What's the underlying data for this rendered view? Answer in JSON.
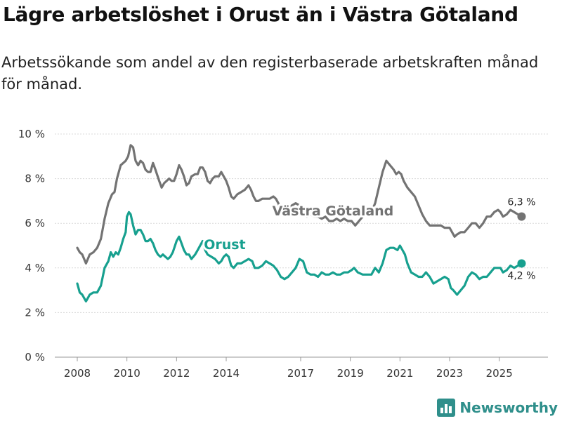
{
  "header": {
    "title": "Lägre arbetslöshet i Orust än i Västra Götaland",
    "subtitle": "Arbetssökande som andel av den registerbaserade arbetskraften månad för månad."
  },
  "brand": {
    "name": "Newsworthy",
    "color": "#2f8f8b"
  },
  "chart_data": {
    "type": "line",
    "title": "Lägre arbetslöshet i Orust än i Västra Götaland",
    "subtitle": "Arbetssökande som andel av den registerbaserade arbetskraften månad för månad.",
    "xlabel": "",
    "ylabel": "",
    "x_range": [
      2008.0,
      2026.0
    ],
    "ylim": [
      0,
      10
    ],
    "y_ticks": [
      0,
      2,
      4,
      6,
      8,
      10
    ],
    "y_tick_labels": [
      "0 %",
      "2 %",
      "4 %",
      "6 %",
      "8 %",
      "10 %"
    ],
    "x_ticks": [
      2008,
      2010,
      2012,
      2014,
      2017,
      2019,
      2021,
      2023,
      2025
    ],
    "x_tick_labels": [
      "2008",
      "2010",
      "2012",
      "2014",
      "2017",
      "2019",
      "2021",
      "2023",
      "2025"
    ],
    "grid": "horizontal",
    "series": [
      {
        "name": "Västra Götaland",
        "color": "#737373",
        "end_label": "6,3 %",
        "x": [
          2008.0,
          2008.1,
          2008.2,
          2008.35,
          2008.5,
          2008.65,
          2008.8,
          2008.95,
          2009.1,
          2009.25,
          2009.4,
          2009.5,
          2009.6,
          2009.75,
          2009.85,
          2009.95,
          2010.05,
          2010.15,
          2010.25,
          2010.35,
          2010.45,
          2010.55,
          2010.65,
          2010.75,
          2010.85,
          2010.95,
          2011.05,
          2011.15,
          2011.3,
          2011.4,
          2011.5,
          2011.6,
          2011.7,
          2011.8,
          2011.9,
          2012.0,
          2012.1,
          2012.2,
          2012.3,
          2012.4,
          2012.5,
          2012.6,
          2012.75,
          2012.85,
          2012.95,
          2013.05,
          2013.15,
          2013.25,
          2013.35,
          2013.45,
          2013.55,
          2013.7,
          2013.8,
          2013.9,
          2014.0,
          2014.1,
          2014.2,
          2014.3,
          2014.45,
          2014.6,
          2014.75,
          2014.9,
          2015.0,
          2015.1,
          2015.2,
          2015.3,
          2015.45,
          2015.6,
          2015.75,
          2015.9,
          2016.0,
          2016.1,
          2016.2,
          2016.35,
          2016.5,
          2016.65,
          2016.8,
          2016.95,
          2017.1,
          2017.25,
          2017.4,
          2017.55,
          2017.7,
          2017.85,
          2018.0,
          2018.15,
          2018.3,
          2018.45,
          2018.6,
          2018.75,
          2018.9,
          2019.05,
          2019.2,
          2019.35,
          2019.5,
          2019.7,
          2019.85,
          2020.0,
          2020.15,
          2020.3,
          2020.45,
          2020.6,
          2020.75,
          2020.85,
          2020.95,
          2021.05,
          2021.15,
          2021.3,
          2021.45,
          2021.6,
          2021.75,
          2021.9,
          2022.05,
          2022.2,
          2022.35,
          2022.5,
          2022.65,
          2022.8,
          2022.9,
          2023.0,
          2023.1,
          2023.2,
          2023.3,
          2023.45,
          2023.6,
          2023.75,
          2023.9,
          2024.05,
          2024.2,
          2024.35,
          2024.5,
          2024.65,
          2024.8,
          2024.95,
          2025.05,
          2025.15,
          2025.3,
          2025.45,
          2025.6,
          2025.75,
          2025.9
        ],
        "values": [
          4.9,
          4.7,
          4.6,
          4.2,
          4.6,
          4.7,
          4.9,
          5.3,
          6.2,
          6.9,
          7.3,
          7.4,
          8.0,
          8.6,
          8.7,
          8.8,
          9.0,
          9.5,
          9.4,
          8.8,
          8.6,
          8.8,
          8.7,
          8.4,
          8.3,
          8.3,
          8.7,
          8.4,
          7.9,
          7.6,
          7.8,
          7.9,
          8.0,
          7.9,
          7.9,
          8.2,
          8.6,
          8.4,
          8.1,
          7.7,
          7.8,
          8.1,
          8.2,
          8.2,
          8.5,
          8.5,
          8.3,
          7.9,
          7.8,
          8.0,
          8.1,
          8.1,
          8.3,
          8.1,
          7.9,
          7.6,
          7.2,
          7.1,
          7.3,
          7.4,
          7.5,
          7.7,
          7.5,
          7.2,
          7.0,
          7.0,
          7.1,
          7.1,
          7.1,
          7.2,
          7.1,
          6.9,
          6.6,
          6.5,
          6.7,
          6.8,
          6.9,
          6.8,
          6.6,
          6.3,
          6.4,
          6.3,
          6.3,
          6.2,
          6.3,
          6.1,
          6.1,
          6.2,
          6.1,
          6.2,
          6.1,
          6.1,
          5.9,
          6.1,
          6.3,
          6.4,
          6.5,
          6.9,
          7.6,
          8.3,
          8.8,
          8.6,
          8.4,
          8.2,
          8.3,
          8.2,
          7.9,
          7.6,
          7.4,
          7.2,
          6.8,
          6.4,
          6.1,
          5.9,
          5.9,
          5.9,
          5.9,
          5.8,
          5.8,
          5.8,
          5.6,
          5.4,
          5.5,
          5.6,
          5.6,
          5.8,
          6.0,
          6.0,
          5.8,
          6.0,
          6.3,
          6.3,
          6.5,
          6.6,
          6.5,
          6.3,
          6.4,
          6.6,
          6.5,
          6.4,
          6.3
        ]
      },
      {
        "name": "Orust",
        "color": "#17a08f",
        "end_label": "4,2 %",
        "x": [
          2008.0,
          2008.1,
          2008.2,
          2008.35,
          2008.5,
          2008.65,
          2008.8,
          2008.95,
          2009.1,
          2009.25,
          2009.35,
          2009.45,
          2009.55,
          2009.65,
          2009.75,
          2009.85,
          2009.95,
          2010.0,
          2010.08,
          2010.15,
          2010.25,
          2010.35,
          2010.45,
          2010.55,
          2010.65,
          2010.75,
          2010.85,
          2010.95,
          2011.05,
          2011.15,
          2011.25,
          2011.35,
          2011.45,
          2011.55,
          2011.65,
          2011.75,
          2011.85,
          2012.0,
          2012.1,
          2012.2,
          2012.3,
          2012.4,
          2012.5,
          2012.6,
          2012.75,
          2012.85,
          2012.95,
          2013.05,
          2013.15,
          2013.25,
          2013.4,
          2013.55,
          2013.7,
          2013.8,
          2013.9,
          2014.0,
          2014.1,
          2014.2,
          2014.3,
          2014.45,
          2014.6,
          2014.75,
          2014.9,
          2015.05,
          2015.15,
          2015.3,
          2015.45,
          2015.6,
          2015.75,
          2015.9,
          2016.05,
          2016.2,
          2016.35,
          2016.5,
          2016.65,
          2016.8,
          2016.95,
          2017.1,
          2017.25,
          2017.4,
          2017.55,
          2017.7,
          2017.85,
          2018.0,
          2018.15,
          2018.3,
          2018.45,
          2018.6,
          2018.75,
          2018.9,
          2019.05,
          2019.15,
          2019.3,
          2019.5,
          2019.7,
          2019.85,
          2020.0,
          2020.15,
          2020.3,
          2020.45,
          2020.6,
          2020.75,
          2020.9,
          2021.0,
          2021.1,
          2021.2,
          2021.3,
          2021.45,
          2021.6,
          2021.75,
          2021.9,
          2022.05,
          2022.2,
          2022.35,
          2022.5,
          2022.65,
          2022.8,
          2022.95,
          2023.05,
          2023.15,
          2023.3,
          2023.45,
          2023.6,
          2023.75,
          2023.9,
          2024.05,
          2024.2,
          2024.35,
          2024.5,
          2024.65,
          2024.8,
          2024.95,
          2025.05,
          2025.15,
          2025.3,
          2025.45,
          2025.6,
          2025.75,
          2025.9
        ],
        "values": [
          3.3,
          2.9,
          2.8,
          2.5,
          2.8,
          2.9,
          2.9,
          3.2,
          4.0,
          4.3,
          4.7,
          4.5,
          4.7,
          4.6,
          4.9,
          5.3,
          5.6,
          6.3,
          6.5,
          6.4,
          5.9,
          5.5,
          5.7,
          5.7,
          5.5,
          5.2,
          5.2,
          5.3,
          5.1,
          4.8,
          4.6,
          4.5,
          4.6,
          4.5,
          4.4,
          4.5,
          4.7,
          5.2,
          5.4,
          5.1,
          4.8,
          4.6,
          4.6,
          4.4,
          4.6,
          4.8,
          5.0,
          5.2,
          4.8,
          4.6,
          4.5,
          4.4,
          4.2,
          4.3,
          4.5,
          4.6,
          4.5,
          4.1,
          4.0,
          4.2,
          4.2,
          4.3,
          4.4,
          4.3,
          4.0,
          4.0,
          4.1,
          4.3,
          4.2,
          4.1,
          3.9,
          3.6,
          3.5,
          3.6,
          3.8,
          4.0,
          4.4,
          4.3,
          3.8,
          3.7,
          3.7,
          3.6,
          3.8,
          3.7,
          3.7,
          3.8,
          3.7,
          3.7,
          3.8,
          3.8,
          3.9,
          4.0,
          3.8,
          3.7,
          3.7,
          3.7,
          4.0,
          3.8,
          4.2,
          4.8,
          4.9,
          4.9,
          4.8,
          5.0,
          4.8,
          4.6,
          4.2,
          3.8,
          3.7,
          3.6,
          3.6,
          3.8,
          3.6,
          3.3,
          3.4,
          3.5,
          3.6,
          3.5,
          3.1,
          3.0,
          2.8,
          3.0,
          3.2,
          3.6,
          3.8,
          3.7,
          3.5,
          3.6,
          3.6,
          3.8,
          4.0,
          4.0,
          4.0,
          3.8,
          3.9,
          4.1,
          4.0,
          4.1,
          4.2
        ]
      }
    ]
  }
}
